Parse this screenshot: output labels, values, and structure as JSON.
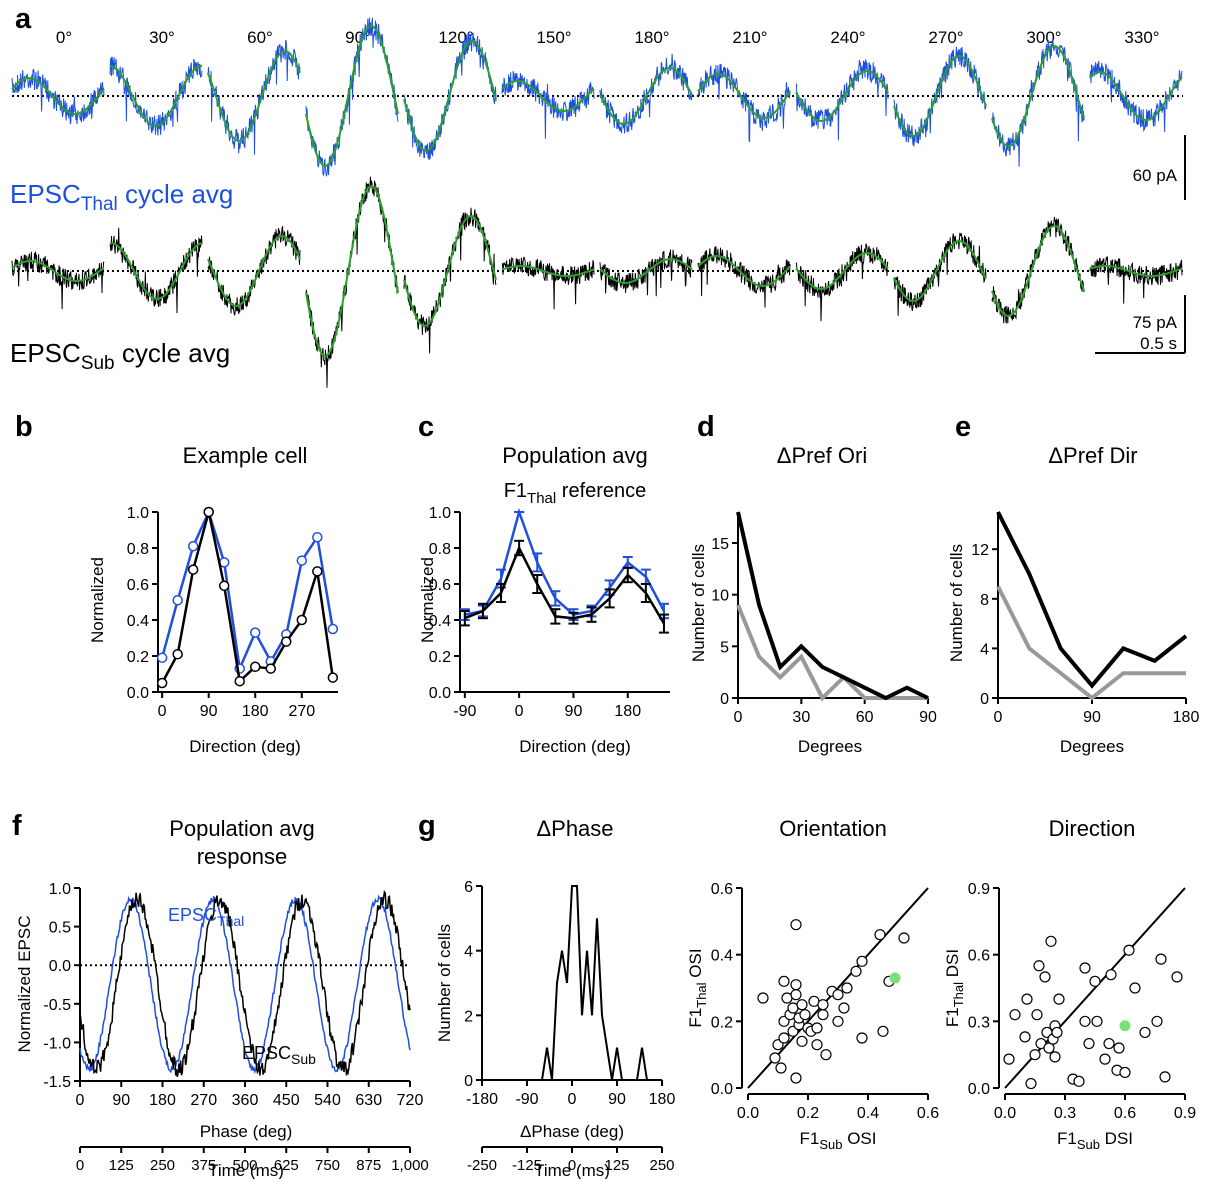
{
  "panel_letters": {
    "a": "a",
    "b": "b",
    "c": "c",
    "d": "d",
    "e": "e",
    "f": "f",
    "g": "g"
  },
  "colors": {
    "thal": "#1f4fe0",
    "sub": "#000000",
    "fit": "#2aa02a",
    "gray": "#999999",
    "marker": "#7be07b"
  },
  "panel_a": {
    "directions": [
      "0°",
      "30°",
      "60°",
      "90°",
      "120°",
      "150°",
      "180°",
      "210°",
      "240°",
      "270°",
      "300°",
      "330°"
    ],
    "thal_label": {
      "main": "EPSC",
      "sub": "Thal",
      "rest": " cycle avg"
    },
    "sub_label": {
      "main": "EPSC",
      "sub": "Sub",
      "rest": " cycle avg"
    },
    "scale_thal": "60 pA",
    "scale_sub": "75 pA",
    "scale_time": "0.5 s"
  },
  "chart_data": [
    {
      "id": "b",
      "type": "line",
      "title": "Example cell",
      "xlabel": "Direction (deg)",
      "ylabel": "Normalized",
      "xticks": [
        "0",
        "90",
        "180",
        "270"
      ],
      "yticks": [
        "0.0",
        "0.2",
        "0.4",
        "0.6",
        "0.8",
        "1.0"
      ],
      "xlim": [
        -10,
        340
      ],
      "ylim": [
        -0.05,
        1.05
      ],
      "x": [
        0,
        30,
        60,
        90,
        120,
        150,
        180,
        210,
        240,
        270,
        300,
        330
      ],
      "series": [
        {
          "color": "#1f4fe0",
          "values": [
            0.19,
            0.51,
            0.81,
            1.0,
            0.72,
            0.13,
            0.33,
            0.17,
            0.32,
            0.73,
            0.86,
            0.35
          ]
        },
        {
          "color": "#000000",
          "values": [
            0.05,
            0.21,
            0.68,
            1.0,
            0.59,
            0.06,
            0.14,
            0.13,
            0.28,
            0.4,
            0.67,
            0.08
          ]
        }
      ]
    },
    {
      "id": "c",
      "type": "line",
      "title": "Population avg",
      "subtitle": {
        "main": "F1",
        "sub": "Thal",
        "rest": " reference"
      },
      "xlabel": "Direction (deg)",
      "ylabel": "Normalized",
      "xticks": [
        "-90",
        "0",
        "90",
        "180"
      ],
      "yticks": [
        "0.0",
        "0.2",
        "0.4",
        "0.6",
        "0.8",
        "1.0"
      ],
      "xlim": [
        -105,
        255
      ],
      "ylim": [
        -0.05,
        1.05
      ],
      "x": [
        -90,
        -60,
        -30,
        0,
        30,
        60,
        90,
        120,
        150,
        180,
        210,
        240
      ],
      "series": [
        {
          "color": "#1f4fe0",
          "values": [
            0.43,
            0.45,
            0.63,
            1.0,
            0.72,
            0.52,
            0.43,
            0.45,
            0.58,
            0.72,
            0.64,
            0.45
          ],
          "err": [
            0.03,
            0.03,
            0.05,
            0.0,
            0.05,
            0.04,
            0.03,
            0.03,
            0.04,
            0.03,
            0.04,
            0.04
          ]
        },
        {
          "color": "#000000",
          "values": [
            0.41,
            0.45,
            0.55,
            0.8,
            0.6,
            0.42,
            0.41,
            0.43,
            0.52,
            0.65,
            0.55,
            0.38
          ],
          "err": [
            0.04,
            0.04,
            0.05,
            0.04,
            0.05,
            0.04,
            0.03,
            0.04,
            0.05,
            0.04,
            0.05,
            0.05
          ]
        }
      ]
    },
    {
      "id": "d",
      "type": "line",
      "title": "ΔPref Ori",
      "xlabel": "Degrees",
      "ylabel": "Number of cells",
      "xticks": [
        "0",
        "30",
        "60",
        "90"
      ],
      "yticks": [
        "0",
        "5",
        "10",
        "15"
      ],
      "xlim": [
        0,
        90
      ],
      "ylim": [
        0,
        18
      ],
      "x": [
        0,
        10,
        20,
        30,
        40,
        50,
        60,
        70,
        80,
        90
      ],
      "series": [
        {
          "color": "#000000",
          "values": [
            18,
            9,
            3,
            5,
            3,
            2,
            1,
            0,
            1,
            0
          ]
        },
        {
          "color": "#999999",
          "values": [
            9,
            4,
            2,
            4,
            0,
            2,
            0,
            0,
            0,
            0
          ]
        }
      ]
    },
    {
      "id": "e",
      "type": "line",
      "title": "ΔPref Dir",
      "xlabel": "Degrees",
      "ylabel": "Number of  cells",
      "xticks": [
        "0",
        "90",
        "180"
      ],
      "yticks": [
        "0",
        "4",
        "8",
        "12"
      ],
      "xlim": [
        0,
        180
      ],
      "ylim": [
        0,
        15
      ],
      "x": [
        0,
        30,
        60,
        90,
        120,
        150,
        180
      ],
      "series": [
        {
          "color": "#000000",
          "values": [
            15,
            10,
            4,
            1,
            4,
            3,
            5
          ]
        },
        {
          "color": "#999999",
          "values": [
            9,
            4,
            2,
            0,
            2,
            2,
            2
          ]
        }
      ]
    },
    {
      "id": "f",
      "type": "line",
      "title": "Population avg",
      "title2": "response",
      "xlabel": "Phase (deg)",
      "xlabel2": "Time (ms)",
      "ylabel": "Normalized EPSC",
      "xticks": [
        "0",
        "90",
        "180",
        "270",
        "360",
        "450",
        "540",
        "630",
        "720"
      ],
      "xticks2": [
        "0",
        "125",
        "250",
        "375",
        "500",
        "625",
        "750",
        "875",
        "1,000"
      ],
      "yticks": [
        "-1.5",
        "-1.0",
        "-0.5",
        "0.0",
        "0.5",
        "1.0"
      ],
      "xlim": [
        0,
        720
      ],
      "ylim": [
        -1.5,
        1.0
      ],
      "series": [
        {
          "name": {
            "main": "EPSC",
            "sub": "Thal"
          },
          "color": "#1f4fe0",
          "phase_deg": 0,
          "amplitude": 1.05,
          "offset": -0.2
        },
        {
          "name": {
            "main": "EPSC",
            "sub": "Sub"
          },
          "color": "#000000",
          "phase_deg": 15,
          "amplitude": 1.0,
          "offset": -0.2
        }
      ]
    },
    {
      "id": "g_phase",
      "type": "line",
      "title": "ΔPhase",
      "xlabel": "ΔPhase (deg)",
      "xlabel2": "Time (ms)",
      "ylabel": "Number of cells",
      "xticks": [
        "-180",
        "-90",
        "0",
        "90",
        "180"
      ],
      "xticks2": [
        "-250",
        "-125",
        "0",
        "125",
        "250"
      ],
      "yticks": [
        "0",
        "2",
        "4",
        "6"
      ],
      "xlim": [
        -180,
        180
      ],
      "ylim": [
        0,
        6
      ],
      "x": [
        -60,
        -50,
        -40,
        -30,
        -20,
        -10,
        0,
        10,
        20,
        30,
        40,
        50,
        60,
        70,
        80,
        90,
        100,
        110,
        120,
        130,
        140,
        150
      ],
      "values": [
        0,
        1,
        0,
        3,
        4,
        3,
        6,
        6,
        2,
        4,
        2,
        5,
        2,
        1,
        0,
        1,
        0,
        0,
        0,
        0,
        1,
        0
      ]
    },
    {
      "id": "g_ori",
      "type": "scatter",
      "title": "Orientation",
      "xlabel": {
        "main": "F1",
        "sub": "Sub",
        "rest": " OSI"
      },
      "ylabel": {
        "main": "F1",
        "sub": "Thal",
        "rest": " OSI"
      },
      "xticks": [
        "0.0",
        "0.2",
        "0.4",
        "0.6"
      ],
      "yticks": [
        "0.0",
        "0.2",
        "0.4",
        "0.6"
      ],
      "xlim": [
        0,
        0.6
      ],
      "ylim": [
        0,
        0.6
      ],
      "points": [
        [
          0.05,
          0.27
        ],
        [
          0.09,
          0.09
        ],
        [
          0.1,
          0.13
        ],
        [
          0.11,
          0.06
        ],
        [
          0.12,
          0.2
        ],
        [
          0.12,
          0.32
        ],
        [
          0.13,
          0.27
        ],
        [
          0.14,
          0.22
        ],
        [
          0.15,
          0.17
        ],
        [
          0.15,
          0.24
        ],
        [
          0.16,
          0.28
        ],
        [
          0.16,
          0.49
        ],
        [
          0.16,
          0.31
        ],
        [
          0.17,
          0.19
        ],
        [
          0.17,
          0.21
        ],
        [
          0.18,
          0.25
        ],
        [
          0.18,
          0.14
        ],
        [
          0.19,
          0.22
        ],
        [
          0.2,
          0.18
        ],
        [
          0.21,
          0.17
        ],
        [
          0.22,
          0.26
        ],
        [
          0.23,
          0.18
        ],
        [
          0.23,
          0.13
        ],
        [
          0.25,
          0.22
        ],
        [
          0.25,
          0.25
        ],
        [
          0.28,
          0.29
        ],
        [
          0.3,
          0.2
        ],
        [
          0.3,
          0.28
        ],
        [
          0.32,
          0.24
        ],
        [
          0.33,
          0.3
        ],
        [
          0.36,
          0.35
        ],
        [
          0.38,
          0.38
        ],
        [
          0.38,
          0.15
        ],
        [
          0.44,
          0.46
        ],
        [
          0.45,
          0.17
        ],
        [
          0.47,
          0.32
        ],
        [
          0.52,
          0.45
        ],
        [
          0.16,
          0.03
        ],
        [
          0.12,
          0.15
        ],
        [
          0.26,
          0.1
        ]
      ],
      "highlight": [
        0.49,
        0.33
      ]
    },
    {
      "id": "g_dir",
      "type": "scatter",
      "title": "Direction",
      "xlabel": {
        "main": "F1",
        "sub": "Sub",
        "rest": " DSI"
      },
      "ylabel": {
        "main": "F1",
        "sub": "Thal",
        "rest": " DSI"
      },
      "xticks": [
        "0.0",
        "0.3",
        "0.6",
        "0.9"
      ],
      "yticks": [
        "0.0",
        "0.3",
        "0.6",
        "0.9"
      ],
      "xlim": [
        0,
        0.9
      ],
      "ylim": [
        0,
        0.9
      ],
      "points": [
        [
          0.02,
          0.13
        ],
        [
          0.05,
          0.33
        ],
        [
          0.1,
          0.23
        ],
        [
          0.11,
          0.4
        ],
        [
          0.13,
          0.02
        ],
        [
          0.15,
          0.15
        ],
        [
          0.16,
          0.33
        ],
        [
          0.17,
          0.55
        ],
        [
          0.18,
          0.2
        ],
        [
          0.2,
          0.5
        ],
        [
          0.21,
          0.25
        ],
        [
          0.22,
          0.18
        ],
        [
          0.23,
          0.66
        ],
        [
          0.24,
          0.22
        ],
        [
          0.25,
          0.28
        ],
        [
          0.25,
          0.14
        ],
        [
          0.26,
          0.25
        ],
        [
          0.27,
          0.4
        ],
        [
          0.34,
          0.04
        ],
        [
          0.37,
          0.03
        ],
        [
          0.4,
          0.3
        ],
        [
          0.4,
          0.54
        ],
        [
          0.42,
          0.2
        ],
        [
          0.45,
          0.48
        ],
        [
          0.46,
          0.3
        ],
        [
          0.5,
          0.13
        ],
        [
          0.53,
          0.51
        ],
        [
          0.56,
          0.08
        ],
        [
          0.57,
          0.18
        ],
        [
          0.6,
          0.07
        ],
        [
          0.62,
          0.62
        ],
        [
          0.65,
          0.45
        ],
        [
          0.7,
          0.25
        ],
        [
          0.76,
          0.3
        ],
        [
          0.78,
          0.58
        ],
        [
          0.8,
          0.05
        ],
        [
          0.86,
          0.5
        ],
        [
          0.52,
          0.2
        ]
      ],
      "highlight": [
        0.6,
        0.28
      ]
    }
  ]
}
